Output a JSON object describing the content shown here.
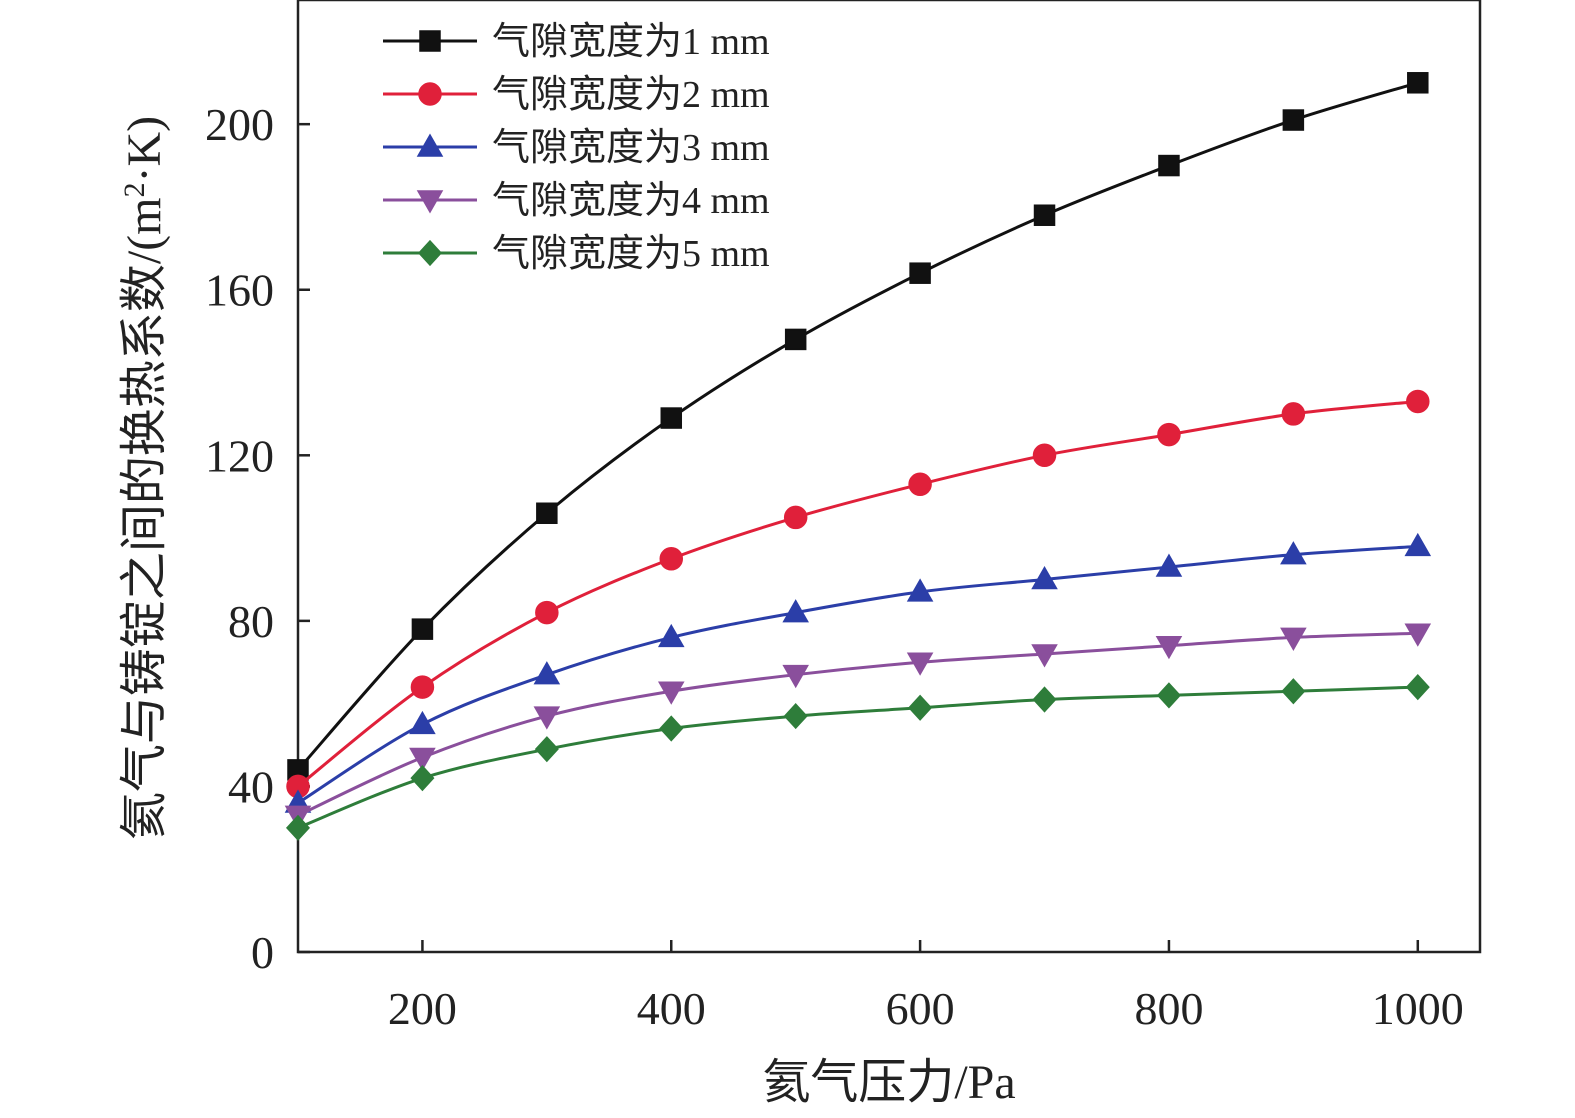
{
  "chart_data": {
    "type": "line",
    "xlabel": "氦气压力/Pa",
    "ylabel_main": "氦气与铸锭之间的换热系数/(m",
    "ylabel_sup": "2",
    "ylabel_end": "·K)",
    "xlim": [
      100,
      1050
    ],
    "ylim": [
      0,
      230
    ],
    "xticks": [
      200,
      400,
      600,
      800,
      1000
    ],
    "yticks": [
      0,
      40,
      80,
      120,
      160,
      200
    ],
    "x": [
      100,
      200,
      300,
      400,
      500,
      600,
      700,
      800,
      900,
      1000
    ],
    "series": [
      {
        "name": "气隙宽度为1 mm",
        "color": "#111111",
        "marker": "square",
        "values": [
          44,
          78,
          106,
          129,
          148,
          164,
          178,
          190,
          201,
          210
        ]
      },
      {
        "name": "气隙宽度为2 mm",
        "color": "#e0203a",
        "marker": "circle",
        "values": [
          40,
          64,
          82,
          95,
          105,
          113,
          120,
          125,
          130,
          133
        ]
      },
      {
        "name": "气隙宽度为3 mm",
        "color": "#2b3ea8",
        "marker": "triangle-up",
        "values": [
          36,
          55,
          67,
          76,
          82,
          87,
          90,
          93,
          96,
          98
        ]
      },
      {
        "name": "气隙宽度为4 mm",
        "color": "#8a4f9c",
        "marker": "triangle-down",
        "values": [
          33,
          47,
          57,
          63,
          67,
          70,
          72,
          74,
          76,
          77
        ]
      },
      {
        "name": "气隙宽度为5 mm",
        "color": "#2e7d3a",
        "marker": "diamond",
        "values": [
          30,
          42,
          49,
          54,
          57,
          59,
          61,
          62,
          63,
          64
        ]
      }
    ],
    "legend_position": "top-left",
    "grid": false
  }
}
